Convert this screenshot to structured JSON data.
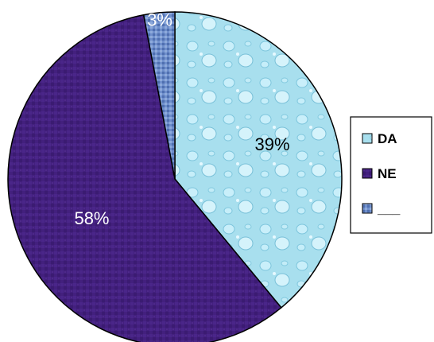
{
  "chart_data": {
    "type": "pie",
    "categories": [
      "DA",
      "NE",
      "___"
    ],
    "values": [
      39,
      58,
      3
    ],
    "data_labels": [
      "39%",
      "58%",
      "3%"
    ],
    "colors": [
      "#a8dfee",
      "#43207e",
      "#6f8fcc"
    ],
    "legend_position": "right",
    "title": ""
  }
}
